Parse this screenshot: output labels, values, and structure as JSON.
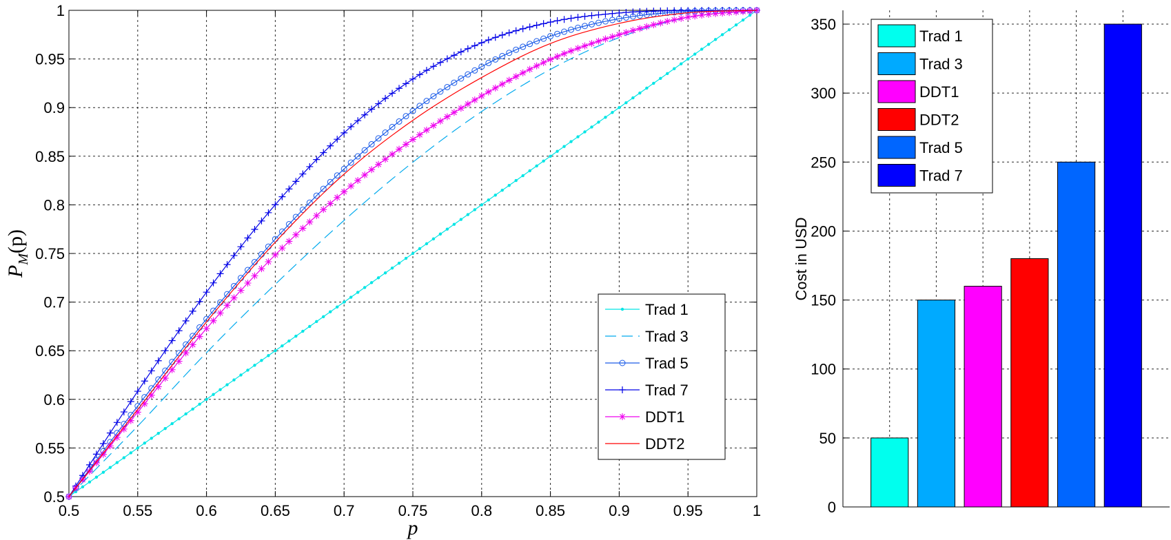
{
  "chart_data": [
    {
      "type": "line",
      "title": "",
      "xlabel": "p",
      "ylabel": "P_M(p)",
      "ylabel_main": "P",
      "ylabel_sub": "M",
      "ylabel_tail": "(p)",
      "xlim": [
        0.5,
        1
      ],
      "ylim": [
        0.5,
        1
      ],
      "grid": true,
      "legend_position": "lower-right",
      "x_ticks": [
        "0.5",
        "0.55",
        "0.6",
        "0.65",
        "0.7",
        "0.75",
        "0.8",
        "0.85",
        "0.9",
        "0.95",
        "1"
      ],
      "y_ticks": [
        "0.5",
        "0.55",
        "0.6",
        "0.65",
        "0.7",
        "0.75",
        "0.8",
        "0.85",
        "0.9",
        "0.95",
        "1"
      ],
      "x": [
        0.5,
        0.55,
        0.6,
        0.65,
        0.7,
        0.75,
        0.8,
        0.85,
        0.9,
        0.95,
        1.0
      ],
      "series": [
        {
          "name": "Trad 1",
          "color": "#00e5e5",
          "dash": "none",
          "marker": "dot",
          "values": [
            0.5,
            0.55,
            0.6,
            0.65,
            0.7,
            0.75,
            0.8,
            0.85,
            0.9,
            0.95,
            1.0
          ]
        },
        {
          "name": "Trad 3",
          "color": "#00aaee",
          "dash": "long",
          "marker": "none",
          "values": [
            0.5,
            0.5725,
            0.648,
            0.7183,
            0.784,
            0.8438,
            0.896,
            0.9393,
            0.972,
            0.9928,
            1.0
          ]
        },
        {
          "name": "Trad 5",
          "color": "#1a5be8",
          "dash": "none",
          "marker": "circle",
          "values": [
            0.5,
            0.5931,
            0.6826,
            0.7648,
            0.8369,
            0.8965,
            0.9421,
            0.9734,
            0.9914,
            0.9988,
            1.0
          ]
        },
        {
          "name": "Trad 7",
          "color": "#0000e6",
          "dash": "none",
          "marker": "plus",
          "values": [
            0.5,
            0.6083,
            0.7102,
            0.8002,
            0.874,
            0.9294,
            0.9667,
            0.9879,
            0.9973,
            0.9998,
            1.0
          ]
        },
        {
          "name": "DDT1",
          "color": "#ee00ee",
          "dash": "none",
          "marker": "star",
          "values": [
            0.5,
            0.5868,
            0.6728,
            0.7486,
            0.8135,
            0.8672,
            0.912,
            0.9495,
            0.975,
            0.993,
            1.0
          ]
        },
        {
          "name": "DDT2",
          "color": "#ff0000",
          "dash": "none",
          "marker": "none",
          "values": [
            0.5,
            0.5895,
            0.6796,
            0.7616,
            0.8316,
            0.8869,
            0.9309,
            0.9659,
            0.9866,
            0.9975,
            1.0
          ]
        }
      ]
    },
    {
      "type": "bar",
      "title": "",
      "xlabel": "",
      "ylabel": "Cost in USD",
      "ylim": [
        0,
        360
      ],
      "grid": true,
      "legend_position": "top-left",
      "y_ticks": [
        "0",
        "50",
        "100",
        "150",
        "200",
        "250",
        "300",
        "350"
      ],
      "categories": [
        "Trad 1",
        "Trad 3",
        "DDT1",
        "DDT2",
        "Trad 5",
        "Trad 7"
      ],
      "values": [
        50,
        150,
        160,
        180,
        250,
        350
      ],
      "colors": [
        "#00ffee",
        "#00aaff",
        "#ff00ff",
        "#ff0000",
        "#0066ff",
        "#0000ff"
      ],
      "legend": [
        "Trad 1",
        "Trad 3",
        "DDT1",
        "DDT2",
        "Trad 5",
        "Trad 7"
      ]
    }
  ]
}
